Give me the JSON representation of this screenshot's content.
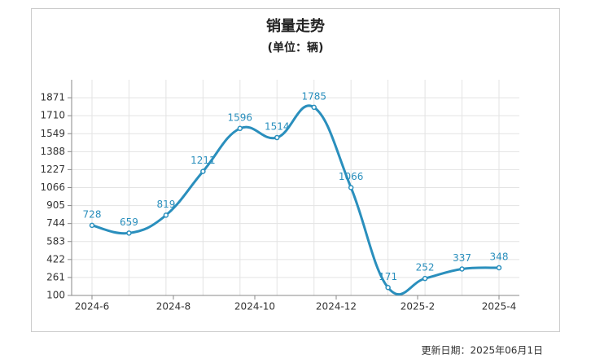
{
  "chart_data": {
    "type": "line",
    "title": "销量走势",
    "subtitle": "(单位：辆)",
    "x": [
      0,
      1,
      2,
      3,
      4,
      5,
      6,
      7,
      8,
      9,
      10,
      11
    ],
    "xlim": [
      -0.55,
      11.55
    ],
    "xticks": [
      {
        "value": 0,
        "label": "2024-6"
      },
      {
        "value": 2.2,
        "label": "2024-8"
      },
      {
        "value": 4.4,
        "label": "2024-10"
      },
      {
        "value": 6.6,
        "label": "2024-12"
      },
      {
        "value": 8.8,
        "label": "2025-2"
      },
      {
        "value": 11,
        "label": "2025-4"
      }
    ],
    "series": [
      {
        "color": "#2a8fbd",
        "values": [
          728,
          659,
          819,
          1211,
          1596,
          1514,
          1785,
          1066,
          171,
          252,
          337,
          348
        ]
      }
    ],
    "ylim": [
      100,
      2032
    ],
    "yticks": [
      100,
      261,
      422,
      583,
      744,
      905,
      1066,
      1227,
      1388,
      1549,
      1710,
      1871
    ],
    "grid": true,
    "footer": "更新日期：2025年06月1日"
  }
}
